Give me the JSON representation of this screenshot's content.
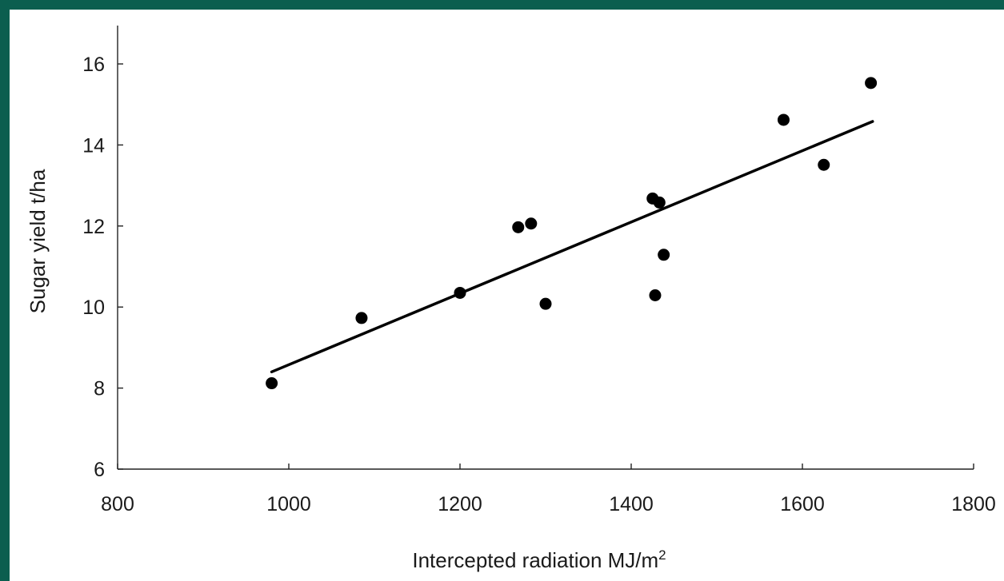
{
  "chart_data": {
    "type": "scatter",
    "title": "",
    "xlabel": "Intercepted radiation MJ/m",
    "xlabel_superscript": "2",
    "ylabel": "Sugar yield t/ha",
    "xlim": [
      800,
      1800
    ],
    "ylim": [
      6,
      16.8
    ],
    "xticks": [
      800,
      1000,
      1200,
      1400,
      1600,
      1800
    ],
    "yticks": [
      6,
      8,
      10,
      12,
      14,
      16
    ],
    "grid": false,
    "legend": "none",
    "points": [
      {
        "x": 980,
        "y": 8.12
      },
      {
        "x": 1085,
        "y": 9.73
      },
      {
        "x": 1200,
        "y": 10.35
      },
      {
        "x": 1268,
        "y": 11.97
      },
      {
        "x": 1283,
        "y": 12.06
      },
      {
        "x": 1300,
        "y": 10.08
      },
      {
        "x": 1425,
        "y": 12.68
      },
      {
        "x": 1428,
        "y": 10.29
      },
      {
        "x": 1433,
        "y": 12.58
      },
      {
        "x": 1438,
        "y": 11.29
      },
      {
        "x": 1578,
        "y": 14.62
      },
      {
        "x": 1625,
        "y": 13.51
      },
      {
        "x": 1680,
        "y": 15.53
      }
    ],
    "trendline": {
      "x": [
        980,
        1682
      ],
      "y": [
        8.4,
        14.58
      ]
    },
    "colors": {
      "points": "#000000",
      "trendline": "#000000",
      "frame": "#0b5e4f"
    }
  }
}
